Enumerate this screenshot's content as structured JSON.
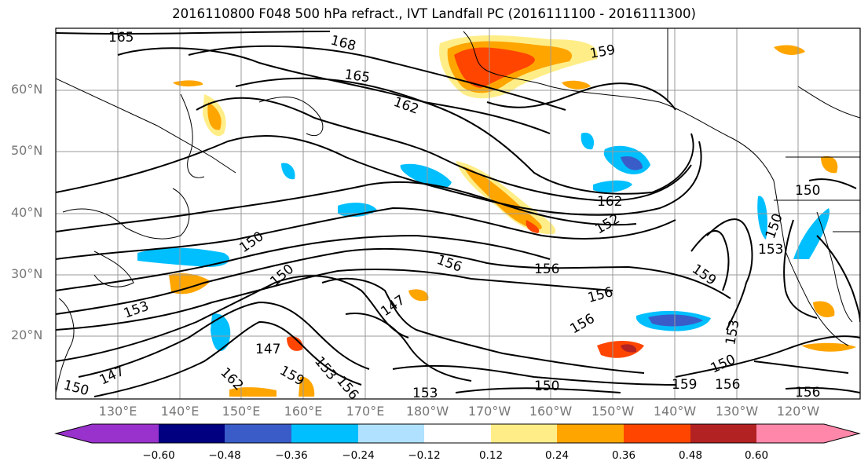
{
  "title": "2016110800 F048 500 hPa refract., IVT Landfall PC (2016111100 - 2016111300)",
  "latitude_labels": [
    "60°N",
    "50°N",
    "40°N",
    "30°N",
    "20°N"
  ],
  "longitude_labels": [
    "130°E",
    "140°E",
    "150°E",
    "160°E",
    "170°E",
    "180°W",
    "170°W",
    "160°W",
    "150°W",
    "140°W",
    "130°W",
    "120°W"
  ],
  "contour_labels": [
    "165",
    "168",
    "165",
    "162",
    "159",
    "162",
    "150",
    "152",
    "150",
    "153",
    "150",
    "156",
    "156",
    "156",
    "156",
    "147",
    "150",
    "147",
    "153",
    "156",
    "162",
    "159",
    "147",
    "150",
    "153",
    "153",
    "159",
    "159",
    "156",
    "153",
    "150",
    "156",
    "150"
  ],
  "colorbar": {
    "colors": [
      "#9932cc",
      "#000080",
      "#3a5cc8",
      "#00bfff",
      "#b0e2ff",
      "#ffffff",
      "#ffee88",
      "#ffa500",
      "#ff4500",
      "#b22222",
      "#ff88aa"
    ],
    "tick_labels": [
      "−0.60",
      "−0.48",
      "−0.36",
      "−0.24",
      "−0.12",
      "0.12",
      "0.24",
      "0.36",
      "0.48",
      "0.60"
    ]
  }
}
